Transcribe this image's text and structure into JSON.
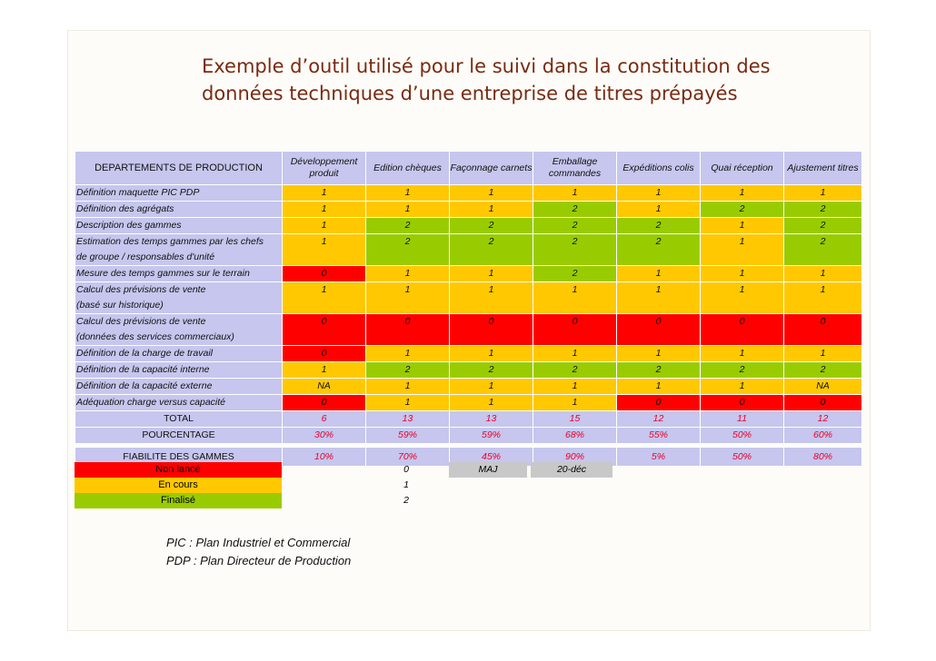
{
  "title": {
    "line1": "Exemple d’outil utilisé pour le suivi dans la constitution des",
    "line2": "données techniques d’une entreprise de titres prépayés"
  },
  "table": {
    "headers": [
      "DEPARTEMENTS DE PRODUCTION",
      "Développement produit",
      "Edition chèques",
      "Façonnage carnets",
      "Emballage commandes",
      "Expéditions colis",
      "Quai réception",
      "Ajustement titres"
    ],
    "rows": [
      {
        "label": "Définition maquette PIC PDP",
        "values": [
          "1",
          "1",
          "1",
          "1",
          "1",
          "1",
          "1"
        ]
      },
      {
        "label": "Définition des agrégats",
        "values": [
          "1",
          "1",
          "1",
          "2",
          "1",
          "2",
          "2"
        ]
      },
      {
        "label": "Description des gammes",
        "values": [
          "1",
          "2",
          "2",
          "2",
          "2",
          "1",
          "2"
        ]
      },
      {
        "label": "Estimation des temps gammes par les chefs",
        "label2": "de groupe / responsables d'unité",
        "values": [
          "1",
          "2",
          "2",
          "2",
          "2",
          "1",
          "2"
        ]
      },
      {
        "label": "Mesure des temps gammes sur le terrain",
        "values": [
          "0",
          "1",
          "1",
          "2",
          "1",
          "1",
          "1"
        ]
      },
      {
        "label": "Calcul des prévisions de vente",
        "label2": "(basé sur historique)",
        "values": [
          "1",
          "1",
          "1",
          "1",
          "1",
          "1",
          "1"
        ]
      },
      {
        "label": "Calcul des prévisions de vente",
        "label2": "(données des services commerciaux)",
        "values": [
          "0",
          "0",
          "0",
          "0",
          "0",
          "0",
          "0"
        ]
      },
      {
        "label": "Définition de la charge de travail",
        "values": [
          "0",
          "1",
          "1",
          "1",
          "1",
          "1",
          "1"
        ]
      },
      {
        "label": "Définition de la capacité interne",
        "values": [
          "1",
          "2",
          "2",
          "2",
          "2",
          "2",
          "2"
        ]
      },
      {
        "label": "Définition de la capacité externe",
        "values": [
          "NA",
          "1",
          "1",
          "1",
          "1",
          "1",
          "NA"
        ]
      },
      {
        "label": "Adéquation charge versus capacité",
        "values": [
          "0",
          "1",
          "1",
          "1",
          "0",
          "0",
          "0"
        ]
      }
    ],
    "total": {
      "label": "TOTAL",
      "values": [
        "6",
        "13",
        "13",
        "15",
        "12",
        "11",
        "12"
      ]
    },
    "pourcentage": {
      "label": "POURCENTAGE",
      "values": [
        "30%",
        "59%",
        "59%",
        "68%",
        "55%",
        "50%",
        "60%"
      ]
    },
    "fiabilite": {
      "label": "FIABILITE DES GAMMES",
      "values": [
        "10%",
        "70%",
        "45%",
        "90%",
        "5%",
        "50%",
        "80%"
      ]
    }
  },
  "legend": [
    {
      "label": "Non lancé",
      "value": "0",
      "color": "#ff0000"
    },
    {
      "label": "En cours",
      "value": "1",
      "color": "#ffc800"
    },
    {
      "label": "Finalisé",
      "value": "2",
      "color": "#99cc00"
    }
  ],
  "update": {
    "label": "MAJ",
    "date": "20-déc"
  },
  "notes": {
    "pic": "PIC : Plan Industriel et Commercial",
    "pdp": "PDP : Plan Directeur de Production"
  },
  "colors": {
    "red": "#ff0000",
    "yellow": "#ffc800",
    "green": "#99cc00",
    "header": "#c6c6ee",
    "title": "#7a2a12"
  }
}
